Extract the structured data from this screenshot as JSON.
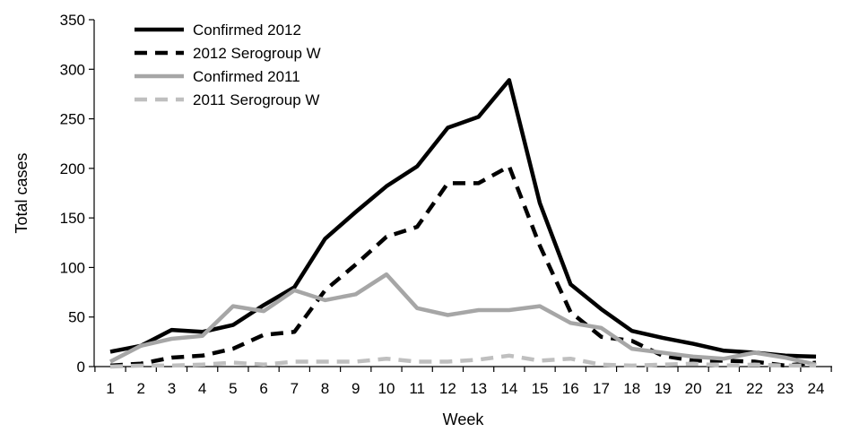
{
  "chart_data": {
    "type": "line",
    "title": "",
    "xlabel": "Week",
    "ylabel": "Total cases",
    "ylim": [
      0,
      350
    ],
    "yticks": [
      0,
      50,
      100,
      150,
      200,
      250,
      300,
      350
    ],
    "x": [
      1,
      2,
      3,
      4,
      5,
      6,
      7,
      8,
      9,
      10,
      11,
      12,
      13,
      14,
      15,
      16,
      17,
      18,
      19,
      20,
      21,
      22,
      23,
      24
    ],
    "grid": false,
    "legend_position": "top-left",
    "series": [
      {
        "name": "Confirmed 2012",
        "color": "#000000",
        "style": "solid",
        "values": [
          15,
          21,
          37,
          35,
          42,
          62,
          80,
          129,
          156,
          182,
          202,
          241,
          252,
          289,
          165,
          83,
          58,
          36,
          29,
          23,
          16,
          14,
          11,
          10
        ]
      },
      {
        "name": "2012 Serogroup W",
        "color": "#000000",
        "style": "dashed",
        "values": [
          1,
          3,
          9,
          11,
          18,
          32,
          35,
          77,
          103,
          131,
          141,
          185,
          185,
          202,
          122,
          55,
          30,
          26,
          11,
          6,
          6,
          5,
          1,
          4
        ]
      },
      {
        "name": "Confirmed 2011",
        "color": "#a6a6a6",
        "style": "solid",
        "values": [
          5,
          21,
          28,
          31,
          61,
          56,
          77,
          67,
          73,
          93,
          59,
          52,
          57,
          57,
          61,
          44,
          39,
          18,
          14,
          10,
          8,
          14,
          9,
          2
        ]
      },
      {
        "name": "2011 Serogroup W",
        "color": "#bfbfbf",
        "style": "dashed",
        "values": [
          0,
          1,
          1,
          2,
          4,
          2,
          5,
          5,
          5,
          8,
          5,
          5,
          7,
          11,
          6,
          8,
          2,
          1,
          2,
          3,
          1,
          2,
          1,
          1
        ]
      }
    ]
  }
}
